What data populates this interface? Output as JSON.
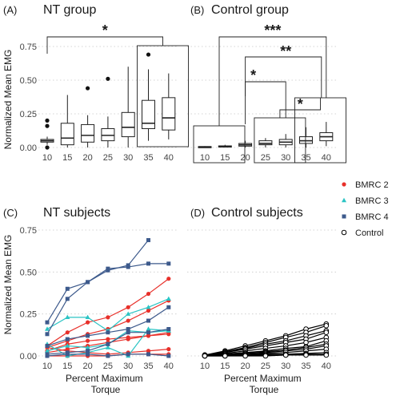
{
  "colors": {
    "BMRC 2": "#e8302a",
    "BMRC 3": "#2bc4c4",
    "BMRC 4": "#3d5a8c",
    "Control": "#000000"
  },
  "legend": {
    "entries": [
      "BMRC 2",
      "BMRC 3",
      "BMRC 4",
      "Control"
    ],
    "markers": [
      "circle",
      "triangle",
      "square",
      "open-circle"
    ]
  },
  "chart_data": [
    {
      "panel_label": "(A)",
      "title": "NT group",
      "type": "box",
      "x_ticks": [
        "10",
        "15",
        "20",
        "25",
        "30",
        "35",
        "40"
      ],
      "y_ticks": [
        "0.00",
        "0.25",
        "0.50",
        "0.75"
      ],
      "ylabel": "Normalized Mean EMG",
      "xlabel": "",
      "ylim": [
        0,
        0.8
      ],
      "boxes": [
        {
          "x": "10",
          "min": 0.02,
          "q1": 0.04,
          "median": 0.05,
          "q3": 0.06,
          "max": 0.08,
          "outliers": [
            0.0,
            0.16,
            0.2
          ]
        },
        {
          "x": "15",
          "min": 0.0,
          "q1": 0.02,
          "median": 0.07,
          "q3": 0.18,
          "max": 0.39,
          "outliers": []
        },
        {
          "x": "20",
          "min": 0.0,
          "q1": 0.04,
          "median": 0.09,
          "q3": 0.17,
          "max": 0.24,
          "outliers": [
            0.44
          ]
        },
        {
          "x": "25",
          "min": 0.0,
          "q1": 0.05,
          "median": 0.09,
          "q3": 0.14,
          "max": 0.23,
          "outliers": [
            0.51
          ]
        },
        {
          "x": "30",
          "min": 0.0,
          "q1": 0.08,
          "median": 0.15,
          "q3": 0.26,
          "max": 0.6,
          "outliers": []
        },
        {
          "x": "35",
          "min": 0.05,
          "q1": 0.14,
          "median": 0.18,
          "q3": 0.35,
          "max": 0.58,
          "outliers": [
            0.69
          ]
        },
        {
          "x": "40",
          "min": 0.06,
          "q1": 0.13,
          "median": 0.22,
          "q3": 0.37,
          "max": 0.55,
          "outliers": []
        }
      ],
      "annotations": [
        {
          "label": "*",
          "from": "10",
          "to": "35-40"
        }
      ]
    },
    {
      "panel_label": "(B)",
      "title": "Control group",
      "type": "box",
      "x_ticks": [
        "10",
        "15",
        "20",
        "25",
        "30",
        "35",
        "40"
      ],
      "ylim": [
        0,
        0.8
      ],
      "boxes": [
        {
          "x": "10",
          "min": 0.0,
          "q1": 0.003,
          "median": 0.005,
          "q3": 0.007,
          "max": 0.01,
          "outliers": []
        },
        {
          "x": "15",
          "min": 0.0,
          "q1": 0.005,
          "median": 0.008,
          "q3": 0.012,
          "max": 0.02,
          "outliers": []
        },
        {
          "x": "20",
          "min": 0.0,
          "q1": 0.01,
          "median": 0.02,
          "q3": 0.03,
          "max": 0.05,
          "outliers": []
        },
        {
          "x": "25",
          "min": 0.0,
          "q1": 0.02,
          "median": 0.03,
          "q3": 0.05,
          "max": 0.07,
          "outliers": []
        },
        {
          "x": "30",
          "min": 0.0,
          "q1": 0.02,
          "median": 0.04,
          "q3": 0.06,
          "max": 0.1,
          "outliers": []
        },
        {
          "x": "35",
          "min": 0.0,
          "q1": 0.03,
          "median": 0.05,
          "q3": 0.08,
          "max": 0.15,
          "outliers": []
        },
        {
          "x": "40",
          "min": 0.01,
          "q1": 0.05,
          "median": 0.08,
          "q3": 0.11,
          "max": 0.19,
          "outliers": []
        }
      ],
      "annotations": [
        {
          "label": "***",
          "from": "10-15",
          "to": "35-40"
        },
        {
          "label": "**",
          "from": "20",
          "to": "35-40"
        },
        {
          "label": "*",
          "from": "20",
          "to": "30"
        },
        {
          "label": "*",
          "from": "25-30",
          "to": "35-40"
        }
      ]
    },
    {
      "panel_label": "(C)",
      "title": "NT subjects",
      "type": "line",
      "x": [
        10,
        15,
        20,
        25,
        30,
        35,
        40
      ],
      "x_ticks": [
        "10",
        "15",
        "20",
        "25",
        "30",
        "35",
        "40"
      ],
      "y_ticks": [
        "0.00",
        "0.25",
        "0.50",
        "0.75"
      ],
      "ylabel": "Normalized Mean EMG",
      "xlabel": "Percent Maximum Torque",
      "ylim": [
        0,
        0.8
      ],
      "series": [
        {
          "group": "BMRC 2",
          "values": [
            0.06,
            0.14,
            0.2,
            0.23,
            0.29,
            0.37,
            0.46
          ]
        },
        {
          "group": "BMRC 2",
          "values": [
            0.05,
            0.09,
            0.13,
            0.16,
            0.21,
            0.27,
            0.33
          ]
        },
        {
          "group": "BMRC 2",
          "values": [
            0.03,
            0.07,
            0.09,
            0.1,
            0.11,
            0.12,
            0.13
          ]
        },
        {
          "group": "BMRC 2",
          "values": [
            0.02,
            0.04,
            0.06,
            0.08,
            0.1,
            0.12,
            0.14
          ]
        },
        {
          "group": "BMRC 2",
          "values": [
            0.05,
            0.03,
            0.02,
            0.01,
            0.02,
            0.03,
            0.04
          ]
        },
        {
          "group": "BMRC 2",
          "values": [
            0.0,
            0.0,
            0.0,
            0.0,
            0.01,
            0.01,
            0.01
          ]
        },
        {
          "group": "BMRC 3",
          "values": [
            0.16,
            0.23,
            0.23,
            0.15,
            0.25,
            0.29,
            0.34
          ]
        },
        {
          "group": "BMRC 3",
          "values": [
            0.07,
            0.0,
            0.02,
            0.05,
            0.0,
            0.16,
            0.15
          ]
        },
        {
          "group": "BMRC 3",
          "values": [
            0.03,
            0.06,
            0.05,
            0.07,
            0.15,
            0.14,
            0.15
          ]
        },
        {
          "group": "BMRC 4",
          "values": [
            0.2,
            0.4,
            0.44,
            0.51,
            0.54,
            0.69,
            null
          ]
        },
        {
          "group": "BMRC 4",
          "values": [
            0.13,
            0.34,
            0.44,
            0.52,
            0.53,
            0.55,
            0.55
          ]
        },
        {
          "group": "BMRC 4",
          "values": [
            0.06,
            0.1,
            0.12,
            0.14,
            0.16,
            0.21,
            0.29
          ]
        },
        {
          "group": "BMRC 4",
          "values": [
            0.01,
            0.02,
            0.03,
            0.07,
            0.14,
            0.14,
            0.16
          ]
        },
        {
          "group": "BMRC 4",
          "values": [
            0.0,
            0.01,
            0.01,
            0.0,
            0.01,
            0.01,
            0.0
          ]
        }
      ]
    },
    {
      "panel_label": "(D)",
      "title": "Control subjects",
      "type": "line",
      "x": [
        10,
        15,
        20,
        25,
        30,
        35,
        40
      ],
      "x_ticks": [
        "10",
        "15",
        "20",
        "25",
        "30",
        "35",
        "40"
      ],
      "xlabel": "Percent Maximum Torque",
      "ylim": [
        0,
        0.8
      ],
      "series": [
        {
          "group": "Control",
          "values": [
            0.005,
            0.03,
            0.06,
            0.09,
            0.12,
            0.16,
            0.19
          ]
        },
        {
          "group": "Control",
          "values": [
            0.005,
            0.025,
            0.05,
            0.08,
            0.11,
            0.14,
            0.18
          ]
        },
        {
          "group": "Control",
          "values": [
            0.005,
            0.02,
            0.045,
            0.07,
            0.09,
            0.12,
            0.15
          ]
        },
        {
          "group": "Control",
          "values": [
            0.005,
            0.02,
            0.04,
            0.06,
            0.08,
            0.1,
            0.14
          ]
        },
        {
          "group": "Control",
          "values": [
            0.005,
            0.015,
            0.03,
            0.045,
            0.06,
            0.08,
            0.11
          ]
        },
        {
          "group": "Control",
          "values": [
            0.005,
            0.01,
            0.02,
            0.03,
            0.045,
            0.055,
            0.09
          ]
        },
        {
          "group": "Control",
          "values": [
            0.005,
            0.01,
            0.02,
            0.025,
            0.035,
            0.05,
            0.07
          ]
        },
        {
          "group": "Control",
          "values": [
            0.0,
            0.01,
            0.015,
            0.02,
            0.03,
            0.04,
            0.06
          ]
        },
        {
          "group": "Control",
          "values": [
            0.0,
            0.005,
            0.01,
            0.015,
            0.02,
            0.03,
            0.04
          ]
        },
        {
          "group": "Control",
          "values": [
            0.0,
            0.005,
            0.005,
            0.01,
            0.01,
            0.015,
            0.02
          ]
        },
        {
          "group": "Control",
          "values": [
            0.0,
            0.0,
            0.005,
            0.005,
            0.005,
            0.01,
            0.01
          ]
        },
        {
          "group": "Control",
          "values": [
            0.0,
            0.0,
            0.0,
            0.0,
            0.005,
            0.005,
            0.005
          ]
        }
      ]
    }
  ]
}
